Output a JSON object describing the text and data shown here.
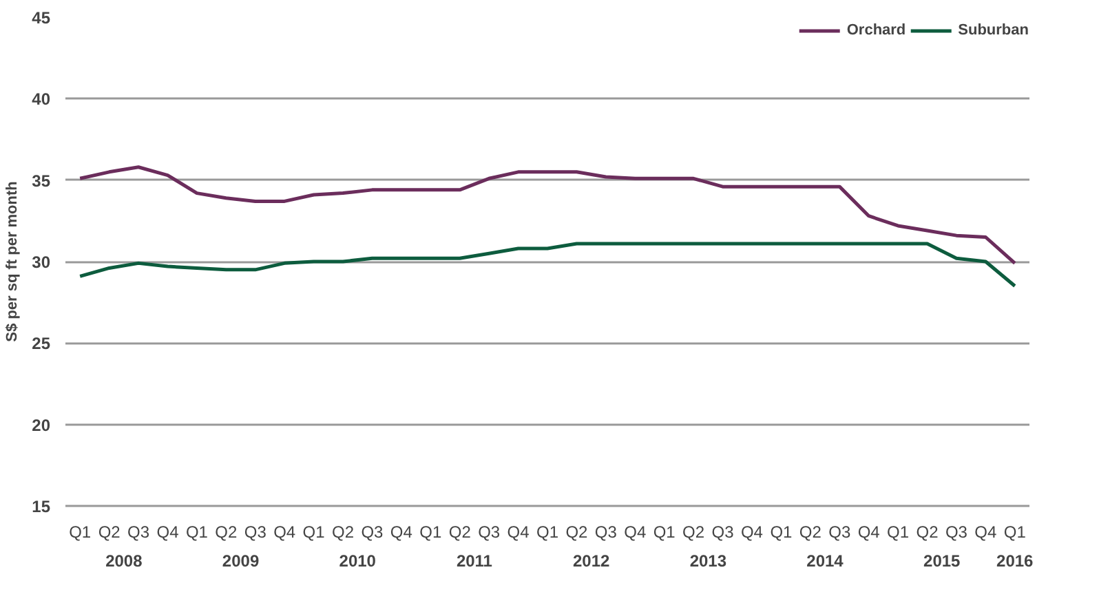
{
  "chart_data": {
    "type": "line",
    "ylabel": "S$ per sq ft per month",
    "categories": [
      [
        "2008",
        "Q1"
      ],
      [
        null,
        "Q2"
      ],
      [
        null,
        "Q3"
      ],
      [
        null,
        "Q4"
      ],
      [
        "2009",
        "Q1"
      ],
      [
        null,
        "Q2"
      ],
      [
        null,
        "Q3"
      ],
      [
        null,
        "Q4"
      ],
      [
        "2010",
        "Q1"
      ],
      [
        null,
        "Q2"
      ],
      [
        null,
        "Q3"
      ],
      [
        null,
        "Q4"
      ],
      [
        "2011",
        "Q1"
      ],
      [
        null,
        "Q2"
      ],
      [
        null,
        "Q3"
      ],
      [
        null,
        "Q4"
      ],
      [
        "2012",
        "Q1"
      ],
      [
        null,
        "Q2"
      ],
      [
        null,
        "Q3"
      ],
      [
        null,
        "Q4"
      ],
      [
        "2013",
        "Q1"
      ],
      [
        null,
        "Q2"
      ],
      [
        null,
        "Q3"
      ],
      [
        null,
        "Q4"
      ],
      [
        "2014",
        "Q1"
      ],
      [
        null,
        "Q2"
      ],
      [
        null,
        "Q3"
      ],
      [
        null,
        "Q4"
      ],
      [
        "2015",
        "Q1"
      ],
      [
        null,
        "Q2"
      ],
      [
        null,
        "Q3"
      ],
      [
        null,
        "Q4"
      ],
      [
        "2016",
        "Q1"
      ]
    ],
    "series": [
      {
        "name": "Orchard",
        "color": "#6b2d5c",
        "values": [
          35.1,
          35.5,
          35.8,
          35.3,
          34.2,
          33.9,
          33.7,
          33.7,
          34.1,
          34.2,
          34.4,
          34.4,
          34.4,
          34.4,
          35.1,
          35.5,
          35.5,
          35.5,
          35.2,
          35.1,
          35.1,
          35.1,
          34.6,
          34.6,
          34.6,
          34.6,
          34.6,
          32.8,
          32.2,
          31.9,
          31.6,
          31.5,
          29.9
        ]
      },
      {
        "name": "Suburban",
        "color": "#0d5c3e",
        "values": [
          29.1,
          29.6,
          29.9,
          29.7,
          29.6,
          29.5,
          29.5,
          29.9,
          30.0,
          30.0,
          30.2,
          30.2,
          30.2,
          30.2,
          30.5,
          30.8,
          30.8,
          31.1,
          31.1,
          31.1,
          31.1,
          31.1,
          31.1,
          31.1,
          31.1,
          31.1,
          31.1,
          31.1,
          31.1,
          31.1,
          30.2,
          30.0,
          28.5
        ]
      }
    ],
    "ylim": [
      15,
      45
    ],
    "yticks": [
      15,
      20,
      25,
      30,
      35,
      40,
      45
    ],
    "grid": "y",
    "legend": "top right"
  }
}
